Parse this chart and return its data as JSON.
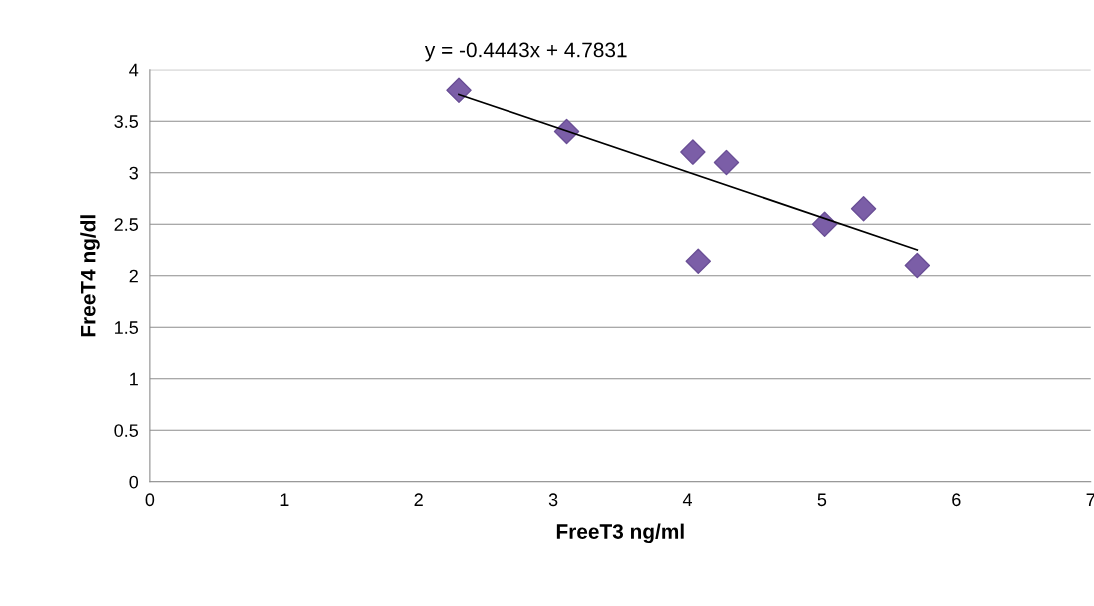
{
  "chart_data": {
    "type": "scatter",
    "xlabel": "FreeT3 ng/ml",
    "ylabel": "FreeT4 ng/dl",
    "annotations": [
      "y = -0.4443x + 4.7831"
    ],
    "xlim": [
      0,
      7
    ],
    "xticks": [
      0,
      1,
      2,
      3,
      4,
      5,
      6,
      7
    ],
    "ylim": [
      0,
      4
    ],
    "yticks": [
      0,
      0.5,
      1,
      1.5,
      2,
      2.5,
      3,
      3.5,
      4
    ],
    "grid": "y",
    "legend": false,
    "series": [
      {
        "color": "#7b5ea7",
        "marker": "diamond",
        "x": [
          2.3,
          3.1,
          4.04,
          4.29,
          4.08,
          5.02,
          5.31,
          5.71
        ],
        "values": [
          3.8,
          3.4,
          3.2,
          3.1,
          2.14,
          2.5,
          2.65,
          2.1
        ]
      },
      {
        "type": "line",
        "color": "#000000",
        "marker": "none",
        "line_style": "solid",
        "x": [
          2.3,
          5.71
        ],
        "values": [
          3.76,
          2.25
        ]
      }
    ]
  }
}
